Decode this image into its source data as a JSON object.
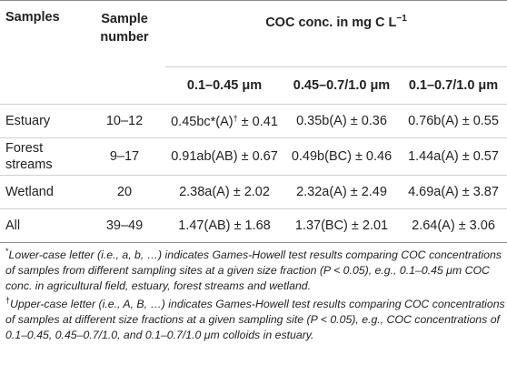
{
  "table": {
    "header": {
      "samples": "Samples",
      "sample_number_line1": "Sample",
      "sample_number_line2": "number",
      "coc_label": "COC conc. in mg C L",
      "coc_exp": "−1",
      "col1": "0.1–0.45 μm",
      "col2": "0.45–0.7/1.0 μm",
      "col3": "0.1–0.7/1.0 μm"
    },
    "rows": [
      {
        "sample": "Estuary",
        "number": "10–12",
        "c1_main": "0.45bc*(A)",
        "c1_sup": "†",
        "c1_tail": " ± 0.41",
        "c2": "0.35b(A) ± 0.36",
        "c3": "0.76b(A) ± 0.55"
      },
      {
        "sample_line1": "Forest",
        "sample_line2": "streams",
        "number": "9–17",
        "c1": "0.91ab(AB) ± 0.67",
        "c2": "0.49b(BC) ± 0.46",
        "c3": "1.44a(A) ± 0.57"
      },
      {
        "sample": "Wetland",
        "number": "20",
        "c1": "2.38a(A) ± 2.02",
        "c2": "2.32a(A) ± 2.49",
        "c3": "4.69a(A) ± 3.87"
      },
      {
        "sample": "All",
        "number": "39–49",
        "c1": "1.47(AB) ± 1.68",
        "c2": "1.37(BC) ± 2.01",
        "c3": "2.64(A) ± 3.06"
      }
    ]
  },
  "notes": {
    "note1_mark": "*",
    "note1_text": "Lower-case letter (i.e., a, b, …) indicates Games-Howell test results comparing COC concentrations of samples from different sampling sites at a given size fraction (P < 0.05), e.g., 0.1–0.45 μm COC conc. in agricultural field, estuary, forest streams and wetland.",
    "note2_mark": "†",
    "note2_text": "Upper-case letter (i.e., A, B, …) indicates Games-Howell test results comparing COC concentrations of samples at different size fractions at a given sampling site (P < 0.05), e.g., COC concentrations of 0.1–0.45, 0.45–0.7/1.0, and 0.1–0.7/1.0 μm colloids in estuary."
  }
}
